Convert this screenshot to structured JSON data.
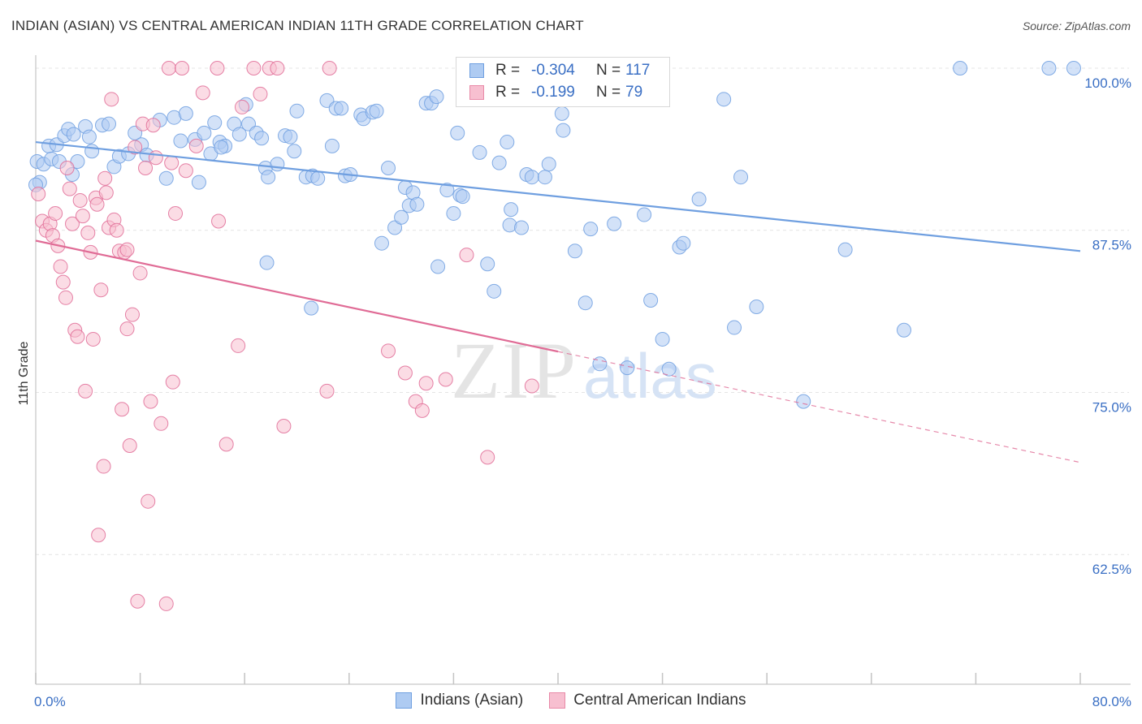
{
  "title": "INDIAN (ASIAN) VS CENTRAL AMERICAN INDIAN 11TH GRADE CORRELATION CHART",
  "source": "Source: ZipAtlas.com",
  "watermark": {
    "zip": "ZIP",
    "atlas": "atlas"
  },
  "legend": {
    "rows": [
      {
        "r_label": "R =",
        "r_value": "-0.304",
        "n_label": "N =",
        "n_value": "117",
        "fill": "#aecbf2",
        "stroke": "#6f9fe0"
      },
      {
        "r_label": "R =",
        "r_value": "-0.199",
        "n_label": "N =",
        "n_value": "79",
        "fill": "#f7bfd0",
        "stroke": "#e88aa8"
      }
    ]
  },
  "bottom_legend": [
    {
      "label": "Indians (Asian)",
      "fill": "#aecbf2",
      "stroke": "#6f9fe0"
    },
    {
      "label": "Central American Indians",
      "fill": "#f7bfd0",
      "stroke": "#e88aa8"
    }
  ],
  "chart_data": {
    "type": "scatter",
    "ylabel": "11th Grade",
    "xlim": [
      0,
      80
    ],
    "ylim": [
      52.5,
      101.5
    ],
    "x_tick_labels": [
      {
        "value": 0,
        "label": "0.0%"
      },
      {
        "value": 80,
        "label": "80.0%"
      }
    ],
    "x_ticks": [
      0,
      8,
      16,
      24,
      32,
      40,
      48,
      56,
      64,
      72,
      80
    ],
    "y_ticks": [
      {
        "value": 100,
        "label": "100.0%"
      },
      {
        "value": 87.5,
        "label": "87.5%"
      },
      {
        "value": 75,
        "label": "75.0%"
      },
      {
        "value": 62.5,
        "label": "62.5%"
      }
    ],
    "series": [
      {
        "name": "Indians (Asian)",
        "color": "#6f9fe0",
        "fill": "#aecbf2",
        "trend": {
          "x0": 0,
          "y0": 94.3,
          "x1": 80,
          "y1": 85.9,
          "solid_until": 80
        },
        "points": [
          [
            0.1,
            92.8
          ],
          [
            0.3,
            91.2
          ],
          [
            0.6,
            92.6
          ],
          [
            1.0,
            94.0
          ],
          [
            1.2,
            93.0
          ],
          [
            1.6,
            94.1
          ],
          [
            2.2,
            94.8
          ],
          [
            2.5,
            95.3
          ],
          [
            2.9,
            94.9
          ],
          [
            3.2,
            92.8
          ],
          [
            3.8,
            95.5
          ],
          [
            4.1,
            94.7
          ],
          [
            4.3,
            93.6
          ],
          [
            5.1,
            95.6
          ],
          [
            5.6,
            95.7
          ],
          [
            6.0,
            92.4
          ],
          [
            6.4,
            93.2
          ],
          [
            7.1,
            93.4
          ],
          [
            7.6,
            95.0
          ],
          [
            8.1,
            94.1
          ],
          [
            8.5,
            93.3
          ],
          [
            9.5,
            96.0
          ],
          [
            10.0,
            91.5
          ],
          [
            10.6,
            96.2
          ],
          [
            11.1,
            94.4
          ],
          [
            11.5,
            96.5
          ],
          [
            12.2,
            94.5
          ],
          [
            12.5,
            91.2
          ],
          [
            12.9,
            95.0
          ],
          [
            13.4,
            93.4
          ],
          [
            13.7,
            95.8
          ],
          [
            14.1,
            94.3
          ],
          [
            14.5,
            94.0
          ],
          [
            15.2,
            95.7
          ],
          [
            15.6,
            94.9
          ],
          [
            16.1,
            97.2
          ],
          [
            16.3,
            95.7
          ],
          [
            16.9,
            95.0
          ],
          [
            17.3,
            94.6
          ],
          [
            17.6,
            92.3
          ],
          [
            17.8,
            91.6
          ],
          [
            18.5,
            92.6
          ],
          [
            19.1,
            94.8
          ],
          [
            19.5,
            94.7
          ],
          [
            19.8,
            93.6
          ],
          [
            20.0,
            96.7
          ],
          [
            20.7,
            91.6
          ],
          [
            21.2,
            91.7
          ],
          [
            21.6,
            91.5
          ],
          [
            22.3,
            97.5
          ],
          [
            22.7,
            94.0
          ],
          [
            23.0,
            96.9
          ],
          [
            23.4,
            96.9
          ],
          [
            23.7,
            91.7
          ],
          [
            24.1,
            91.8
          ],
          [
            24.9,
            96.4
          ],
          [
            25.1,
            96.1
          ],
          [
            25.8,
            96.6
          ],
          [
            26.1,
            96.7
          ],
          [
            26.5,
            86.5
          ],
          [
            27.0,
            92.3
          ],
          [
            27.5,
            87.7
          ],
          [
            28.0,
            88.5
          ],
          [
            28.3,
            90.8
          ],
          [
            28.6,
            89.4
          ],
          [
            28.9,
            90.4
          ],
          [
            29.2,
            89.5
          ],
          [
            29.9,
            97.3
          ],
          [
            30.3,
            97.3
          ],
          [
            30.7,
            97.8
          ],
          [
            31.5,
            90.6
          ],
          [
            32.0,
            88.8
          ],
          [
            32.3,
            95.0
          ],
          [
            32.5,
            90.2
          ],
          [
            32.7,
            90.1
          ],
          [
            34.0,
            93.5
          ],
          [
            34.6,
            84.9
          ],
          [
            35.1,
            82.8
          ],
          [
            35.5,
            92.7
          ],
          [
            36.1,
            94.3
          ],
          [
            36.3,
            87.9
          ],
          [
            37.2,
            87.7
          ],
          [
            37.6,
            91.8
          ],
          [
            38.0,
            91.6
          ],
          [
            39.0,
            91.6
          ],
          [
            39.3,
            92.6
          ],
          [
            40.4,
            95.2
          ],
          [
            41.3,
            85.9
          ],
          [
            42.1,
            81.9
          ],
          [
            42.5,
            87.6
          ],
          [
            43.2,
            77.2
          ],
          [
            44.3,
            88.0
          ],
          [
            45.3,
            76.9
          ],
          [
            46.6,
            88.7
          ],
          [
            47.1,
            82.1
          ],
          [
            48.0,
            79.1
          ],
          [
            48.5,
            76.8
          ],
          [
            49.3,
            86.2
          ],
          [
            49.6,
            86.5
          ],
          [
            50.8,
            89.9
          ],
          [
            52.7,
            97.6
          ],
          [
            53.5,
            80.0
          ],
          [
            54.0,
            91.6
          ],
          [
            55.2,
            81.6
          ],
          [
            70.8,
            100.0
          ],
          [
            77.6,
            100.0
          ],
          [
            79.5,
            100.0
          ],
          [
            58.8,
            74.3
          ],
          [
            62.0,
            86.0
          ],
          [
            66.5,
            79.8
          ],
          [
            21.1,
            81.5
          ],
          [
            0.0,
            91.0
          ],
          [
            1.8,
            92.8
          ],
          [
            2.8,
            91.8
          ],
          [
            14.2,
            93.9
          ],
          [
            17.7,
            85.0
          ],
          [
            30.8,
            84.7
          ],
          [
            36.4,
            89.1
          ],
          [
            40.3,
            96.5
          ]
        ]
      },
      {
        "name": "Central American Indians",
        "color": "#e06c96",
        "fill": "#f7bfd0",
        "trend": {
          "x0": 0,
          "y0": 86.7,
          "x1": 80,
          "y1": 69.6,
          "solid_until": 40
        },
        "points": [
          [
            0.2,
            90.3
          ],
          [
            0.5,
            88.2
          ],
          [
            0.8,
            87.5
          ],
          [
            1.1,
            88.0
          ],
          [
            1.3,
            87.1
          ],
          [
            1.5,
            88.8
          ],
          [
            1.7,
            86.3
          ],
          [
            1.9,
            84.7
          ],
          [
            2.1,
            83.5
          ],
          [
            2.3,
            82.3
          ],
          [
            2.6,
            90.7
          ],
          [
            2.8,
            88.0
          ],
          [
            3.0,
            79.8
          ],
          [
            3.2,
            79.3
          ],
          [
            3.4,
            89.8
          ],
          [
            3.6,
            88.6
          ],
          [
            3.8,
            75.1
          ],
          [
            4.0,
            87.3
          ],
          [
            4.2,
            85.8
          ],
          [
            4.4,
            79.1
          ],
          [
            4.6,
            90.0
          ],
          [
            4.8,
            64.0
          ],
          [
            5.0,
            82.9
          ],
          [
            5.2,
            69.3
          ],
          [
            5.4,
            90.4
          ],
          [
            5.6,
            87.7
          ],
          [
            5.8,
            97.6
          ],
          [
            6.0,
            88.3
          ],
          [
            6.2,
            87.5
          ],
          [
            6.4,
            85.9
          ],
          [
            6.6,
            73.7
          ],
          [
            6.8,
            85.8
          ],
          [
            7.0,
            79.9
          ],
          [
            7.2,
            70.9
          ],
          [
            7.4,
            81.0
          ],
          [
            7.6,
            93.9
          ],
          [
            7.8,
            58.9
          ],
          [
            8.0,
            84.2
          ],
          [
            8.2,
            95.7
          ],
          [
            8.4,
            92.3
          ],
          [
            8.6,
            66.6
          ],
          [
            8.8,
            74.3
          ],
          [
            9.2,
            93.1
          ],
          [
            9.6,
            72.6
          ],
          [
            10.0,
            58.7
          ],
          [
            10.2,
            100.0
          ],
          [
            10.5,
            75.8
          ],
          [
            10.7,
            88.8
          ],
          [
            11.2,
            100.0
          ],
          [
            11.5,
            92.1
          ],
          [
            12.3,
            94.0
          ],
          [
            12.8,
            98.1
          ],
          [
            13.9,
            100.0
          ],
          [
            14.0,
            88.2
          ],
          [
            14.6,
            71.0
          ],
          [
            15.5,
            78.6
          ],
          [
            15.8,
            97.0
          ],
          [
            16.7,
            100.0
          ],
          [
            17.2,
            98.0
          ],
          [
            17.9,
            100.0
          ],
          [
            18.5,
            100.0
          ],
          [
            19.0,
            72.4
          ],
          [
            22.3,
            75.1
          ],
          [
            22.5,
            100.0
          ],
          [
            27.0,
            78.2
          ],
          [
            28.3,
            76.5
          ],
          [
            29.1,
            74.3
          ],
          [
            29.6,
            73.6
          ],
          [
            29.9,
            75.7
          ],
          [
            31.4,
            76.0
          ],
          [
            33.0,
            85.6
          ],
          [
            34.6,
            70.0
          ],
          [
            38.0,
            75.5
          ],
          [
            9.0,
            95.6
          ],
          [
            5.3,
            91.5
          ],
          [
            4.7,
            89.5
          ],
          [
            7.0,
            86.0
          ],
          [
            10.4,
            92.7
          ],
          [
            2.4,
            92.3
          ]
        ]
      }
    ]
  }
}
